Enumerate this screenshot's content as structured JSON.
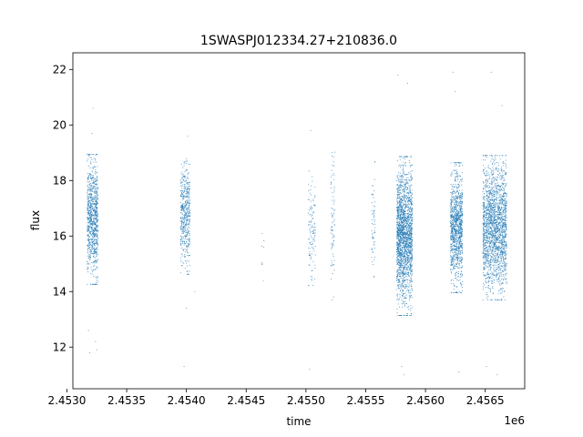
{
  "chart_data": {
    "type": "scatter",
    "title": "1SWASPJ012334.27+210836.0",
    "xlabel": "time",
    "ylabel": "flux",
    "x_offset_label": "1e6",
    "x_scale": 1000000,
    "xlim": [
      2.45305,
      2.45683
    ],
    "ylim": [
      10.5,
      22.6
    ],
    "x_ticks": [
      2.453,
      2.4535,
      2.454,
      2.4545,
      2.455,
      2.4555,
      2.456,
      2.4565
    ],
    "x_tick_labels": [
      "2.4530",
      "2.4535",
      "2.4540",
      "2.4545",
      "2.4550",
      "2.4555",
      "2.4560",
      "2.4565"
    ],
    "y_ticks": [
      12,
      14,
      16,
      18,
      20,
      22
    ],
    "y_tick_labels": [
      "12",
      "14",
      "16",
      "18",
      "20",
      "22"
    ],
    "grid": false,
    "marker_color": "#1f77b4",
    "series": [
      {
        "clusters": [
          {
            "x_range": [
              2.45317,
              2.45326
            ],
            "y_mean": 16.6,
            "y_spread": 1.8,
            "n": 900,
            "outliers": [
              [
                2.45318,
                12.6
              ],
              [
                2.45319,
                11.8
              ],
              [
                2.45321,
                19.7
              ],
              [
                2.45322,
                20.6
              ],
              [
                2.45324,
                12.2
              ],
              [
                2.45325,
                11.9
              ]
            ]
          },
          {
            "x_range": [
              2.45395,
              2.45403
            ],
            "y_mean": 16.7,
            "y_spread": 1.6,
            "n": 500,
            "outliers": [
              [
                2.45398,
                11.3
              ],
              [
                2.45401,
                19.6
              ],
              [
                2.454,
                13.4
              ],
              [
                2.45407,
                14.0
              ]
            ]
          },
          {
            "x_range": [
              2.45463,
              2.45465
            ],
            "y_mean": 15.3,
            "y_spread": 1.2,
            "n": 8,
            "outliers": []
          },
          {
            "x_range": [
              2.45502,
              2.45508
            ],
            "y_mean": 16.3,
            "y_spread": 1.6,
            "n": 120,
            "outliers": [
              [
                2.45504,
                19.8
              ],
              [
                2.45503,
                11.2
              ]
            ]
          },
          {
            "x_range": [
              2.45521,
              2.45524
            ],
            "y_mean": 16.5,
            "y_spread": 2.3,
            "n": 80,
            "outliers": [
              [
                2.45522,
                13.7
              ]
            ]
          },
          {
            "x_range": [
              2.45555,
              2.45558
            ],
            "y_mean": 16.6,
            "y_spread": 1.6,
            "n": 60,
            "outliers": []
          },
          {
            "x_range": [
              2.45576,
              2.45589
            ],
            "y_mean": 16.0,
            "y_spread": 2.2,
            "n": 2000,
            "outliers": [
              [
                2.45577,
                21.8
              ],
              [
                2.45582,
                11.0
              ],
              [
                2.45585,
                21.5
              ],
              [
                2.4558,
                11.3
              ]
            ]
          },
          {
            "x_range": [
              2.45621,
              2.45631
            ],
            "y_mean": 16.3,
            "y_spread": 1.8,
            "n": 1100,
            "outliers": [
              [
                2.45623,
                21.9
              ],
              [
                2.45628,
                11.1
              ],
              [
                2.45625,
                21.2
              ]
            ]
          },
          {
            "x_range": [
              2.45648,
              2.45668
            ],
            "y_mean": 16.3,
            "y_spread": 2.0,
            "n": 2000,
            "outliers": [
              [
                2.45655,
                21.9
              ],
              [
                2.4566,
                11.0
              ],
              [
                2.45664,
                20.7
              ],
              [
                2.45651,
                11.3
              ]
            ]
          }
        ]
      }
    ]
  }
}
